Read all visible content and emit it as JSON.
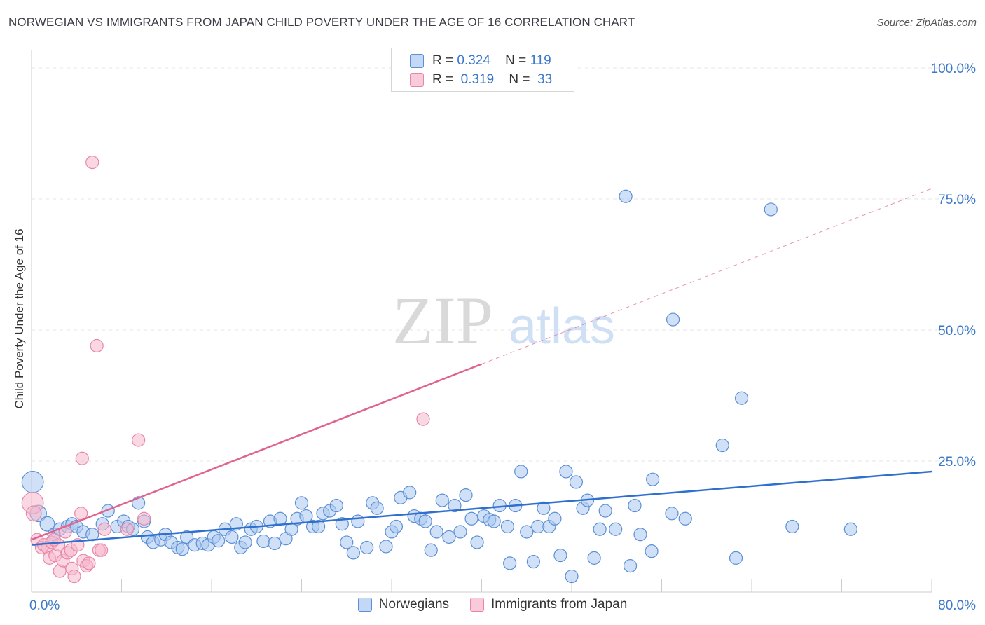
{
  "header": {
    "title": "NORWEGIAN VS IMMIGRANTS FROM JAPAN CHILD POVERTY UNDER THE AGE OF 16 CORRELATION CHART",
    "source": "Source: ZipAtlas.com"
  },
  "watermark": {
    "zip": "ZIP",
    "atlas": "atlas"
  },
  "legend": {
    "rows": [
      {
        "r_label": "R =",
        "r_value": "0.324",
        "n_label": "N =",
        "n_value": "119"
      },
      {
        "r_label": "R =",
        "r_value": "0.319",
        "n_label": "N =",
        "n_value": "33"
      }
    ]
  },
  "colors": {
    "blue_fill": "#a9c9f0",
    "blue_stroke": "#5b8fd6",
    "blue_line": "#2f6fce",
    "pink_fill": "#f6b8cc",
    "pink_stroke": "#e886a8",
    "pink_line": "#e0628e",
    "axis_text": "#3b78c9",
    "grid": "#e5e5e5"
  },
  "chart_data": {
    "type": "scatter",
    "title": "NORWEGIAN VS IMMIGRANTS FROM JAPAN CHILD POVERTY UNDER THE AGE OF 16 CORRELATION CHART",
    "xlabel": "",
    "ylabel": "Child Poverty Under the Age of 16",
    "xlim": [
      0,
      80
    ],
    "ylim": [
      0,
      103
    ],
    "x_tick_labels": [
      "0.0%",
      "80.0%"
    ],
    "y_tick_values": [
      25,
      50,
      75,
      100
    ],
    "y_tick_labels": [
      "25.0%",
      "50.0%",
      "75.0%",
      "100.0%"
    ],
    "grid": true,
    "legend_position": "top-center",
    "series": [
      {
        "name": "Norwegians",
        "r": 0.324,
        "n": 119,
        "trend": {
          "x": [
            0,
            80
          ],
          "y": [
            9.0,
            23.0
          ],
          "style": "solid"
        },
        "points": [
          [
            0.1,
            21,
            1.7
          ],
          [
            0.6,
            15,
            1.3
          ],
          [
            1.4,
            13,
            1.15
          ],
          [
            2.0,
            11,
            1
          ],
          [
            2.5,
            12,
            1
          ],
          [
            3.2,
            12.5,
            1
          ],
          [
            3.6,
            13,
            1
          ],
          [
            4.0,
            12.5,
            1
          ],
          [
            4.6,
            11.5,
            1
          ],
          [
            5.4,
            11,
            1
          ],
          [
            6.3,
            13,
            1
          ],
          [
            6.8,
            15.5,
            1
          ],
          [
            7.6,
            12.5,
            1
          ],
          [
            8.2,
            13.5,
            1
          ],
          [
            8.6,
            12.5,
            1
          ],
          [
            9.0,
            12,
            1
          ],
          [
            9.5,
            17,
            1
          ],
          [
            10.0,
            13.5,
            1
          ],
          [
            10.3,
            10.5,
            1
          ],
          [
            10.8,
            9.5,
            1
          ],
          [
            11.5,
            10,
            1
          ],
          [
            11.9,
            11,
            1
          ],
          [
            12.4,
            9.5,
            1
          ],
          [
            13.0,
            8.5,
            1
          ],
          [
            13.4,
            8.2,
            1
          ],
          [
            13.8,
            10.5,
            1
          ],
          [
            14.5,
            9,
            1
          ],
          [
            15.2,
            9.3,
            1
          ],
          [
            15.7,
            9,
            1
          ],
          [
            16.2,
            10.5,
            1
          ],
          [
            16.6,
            9.8,
            1
          ],
          [
            17.2,
            12,
            1
          ],
          [
            17.8,
            10.5,
            1
          ],
          [
            18.2,
            13,
            1
          ],
          [
            18.6,
            8.5,
            1
          ],
          [
            19.0,
            9.5,
            1
          ],
          [
            19.5,
            12,
            1
          ],
          [
            20.0,
            12.5,
            1
          ],
          [
            20.6,
            9.7,
            1
          ],
          [
            21.2,
            13.5,
            1
          ],
          [
            21.6,
            9.3,
            1
          ],
          [
            22.1,
            14,
            1
          ],
          [
            22.6,
            10.2,
            1
          ],
          [
            23.1,
            12,
            1
          ],
          [
            23.6,
            14,
            1
          ],
          [
            24.0,
            17,
            1
          ],
          [
            24.4,
            14.5,
            1
          ],
          [
            25.0,
            12.5,
            1
          ],
          [
            25.5,
            12.5,
            1
          ],
          [
            25.9,
            15,
            1
          ],
          [
            26.5,
            15.5,
            1
          ],
          [
            27.1,
            16.5,
            1
          ],
          [
            27.6,
            13,
            1
          ],
          [
            28.0,
            9.5,
            1
          ],
          [
            28.6,
            7.5,
            1
          ],
          [
            29.0,
            13.5,
            1
          ],
          [
            29.8,
            8.5,
            1
          ],
          [
            30.3,
            17,
            1
          ],
          [
            30.7,
            16,
            1
          ],
          [
            31.5,
            8.7,
            1
          ],
          [
            32.0,
            11.5,
            1
          ],
          [
            32.4,
            12.5,
            1
          ],
          [
            32.8,
            18,
            1
          ],
          [
            33.6,
            19,
            1
          ],
          [
            34.0,
            14.5,
            1
          ],
          [
            34.6,
            14,
            1
          ],
          [
            35.0,
            13.5,
            1
          ],
          [
            35.5,
            8,
            1
          ],
          [
            36.0,
            11.5,
            1
          ],
          [
            36.5,
            17.5,
            1
          ],
          [
            37.1,
            10.5,
            1
          ],
          [
            37.6,
            16.5,
            1
          ],
          [
            38.1,
            11.5,
            1
          ],
          [
            38.6,
            18.5,
            1
          ],
          [
            39.1,
            14,
            1
          ],
          [
            39.6,
            9.5,
            1
          ],
          [
            40.2,
            14.5,
            1
          ],
          [
            40.7,
            13.8,
            1
          ],
          [
            41.1,
            13.5,
            1
          ],
          [
            41.6,
            16.5,
            1
          ],
          [
            42.3,
            12.5,
            1
          ],
          [
            42.5,
            5.5,
            1
          ],
          [
            43.0,
            16.5,
            1
          ],
          [
            43.5,
            23,
            1
          ],
          [
            44.0,
            11.5,
            1
          ],
          [
            44.6,
            5.8,
            1
          ],
          [
            45.0,
            12.5,
            1
          ],
          [
            45.5,
            16,
            1
          ],
          [
            46.0,
            12.5,
            1
          ],
          [
            46.5,
            14,
            1
          ],
          [
            47.0,
            7,
            1
          ],
          [
            47.5,
            23,
            1
          ],
          [
            48.0,
            3,
            1
          ],
          [
            48.4,
            21,
            1
          ],
          [
            49.0,
            16,
            1
          ],
          [
            49.4,
            17.5,
            1
          ],
          [
            50.0,
            6.5,
            1
          ],
          [
            50.5,
            12,
            1
          ],
          [
            51.0,
            15.5,
            1
          ],
          [
            51.9,
            12,
            1
          ],
          [
            52.8,
            75.5,
            1
          ],
          [
            53.2,
            5,
            1
          ],
          [
            53.6,
            16.5,
            1
          ],
          [
            54.1,
            11,
            1
          ],
          [
            55.1,
            7.8,
            1
          ],
          [
            55.2,
            21.5,
            1
          ],
          [
            57.0,
            52,
            1
          ],
          [
            56.9,
            15,
            1
          ],
          [
            58.1,
            14,
            1
          ],
          [
            61.4,
            28,
            1
          ],
          [
            62.6,
            6.5,
            1
          ],
          [
            63.1,
            37,
            1
          ],
          [
            65.7,
            73,
            1
          ],
          [
            67.6,
            12.5,
            1
          ],
          [
            72.8,
            12,
            1
          ]
        ]
      },
      {
        "name": "Immigrants from Japan",
        "r": 0.319,
        "n": 33,
        "trend": {
          "x": [
            0,
            40
          ],
          "y": [
            10.0,
            43.5
          ],
          "style": "solid",
          "extension": {
            "x": [
              40,
              80
            ],
            "y": [
              43.5,
              77.0
            ],
            "style": "dashed"
          }
        },
        "points": [
          [
            0.1,
            17,
            1.7
          ],
          [
            0.2,
            15,
            1.2
          ],
          [
            0.5,
            10,
            1
          ],
          [
            0.9,
            8.5,
            1
          ],
          [
            1.1,
            9,
            1
          ],
          [
            1.4,
            8.5,
            1
          ],
          [
            1.6,
            6.5,
            1
          ],
          [
            1.8,
            9.5,
            1
          ],
          [
            2.1,
            7,
            1
          ],
          [
            2.4,
            9,
            1
          ],
          [
            2.5,
            4,
            1
          ],
          [
            2.8,
            6,
            1
          ],
          [
            3.0,
            11.5,
            1
          ],
          [
            3.2,
            7.5,
            1
          ],
          [
            3.5,
            8,
            1
          ],
          [
            3.6,
            4.5,
            1
          ],
          [
            3.8,
            3,
            1
          ],
          [
            4.1,
            9,
            1
          ],
          [
            4.4,
            15,
            1
          ],
          [
            4.6,
            6,
            1
          ],
          [
            4.9,
            5,
            1
          ],
          [
            5.1,
            5.5,
            1
          ],
          [
            4.5,
            25.5,
            1
          ],
          [
            5.4,
            82,
            1
          ],
          [
            5.8,
            47,
            1
          ],
          [
            6.0,
            8,
            1
          ],
          [
            6.2,
            8,
            1
          ],
          [
            6.5,
            12,
            1
          ],
          [
            8.5,
            12,
            1
          ],
          [
            9.5,
            29,
            1
          ],
          [
            10.0,
            14,
            1
          ],
          [
            34.8,
            33,
            1
          ],
          [
            2.0,
            10,
            1
          ]
        ]
      }
    ]
  }
}
